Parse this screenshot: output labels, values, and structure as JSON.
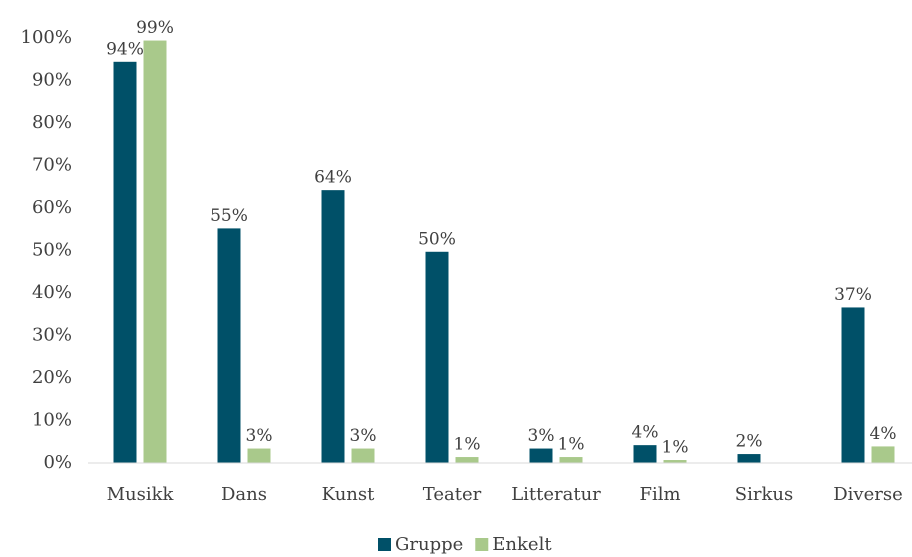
{
  "chart_data": {
    "type": "bar",
    "categories": [
      "Musikk",
      "Dans",
      "Kunst",
      "Teater",
      "Litteratur",
      "Film",
      "Sirkus",
      "Diverse"
    ],
    "series": [
      {
        "name": "Gruppe",
        "color": "#005068",
        "values": [
          94.4,
          55.2,
          64.2,
          49.7,
          3.4,
          4.2,
          2.1,
          36.6
        ],
        "value_labels": [
          "94%",
          "55%",
          "64%",
          "50%",
          "3%",
          "4%",
          "2%",
          "37%"
        ]
      },
      {
        "name": "Enkelt",
        "color": "#a9c98b",
        "values": [
          99.4,
          3.4,
          3.4,
          1.4,
          1.4,
          0.7,
          null,
          3.9
        ],
        "value_labels": [
          "99%",
          "3%",
          "3%",
          "1%",
          "1%",
          "1%",
          null,
          "4%"
        ]
      }
    ],
    "ylim": [
      0,
      100
    ],
    "yticks": [
      {
        "value": 0,
        "label": "0%"
      },
      {
        "value": 10,
        "label": "10%"
      },
      {
        "value": 20,
        "label": "20%"
      },
      {
        "value": 30,
        "label": "30%"
      },
      {
        "value": 40,
        "label": "40%"
      },
      {
        "value": 50,
        "label": "50%"
      },
      {
        "value": 60,
        "label": "60%"
      },
      {
        "value": 70,
        "label": "70%"
      },
      {
        "value": 80,
        "label": "80%"
      },
      {
        "value": 90,
        "label": "90%"
      },
      {
        "value": 100,
        "label": "100%"
      }
    ],
    "grid": false,
    "legend": "bottom"
  }
}
